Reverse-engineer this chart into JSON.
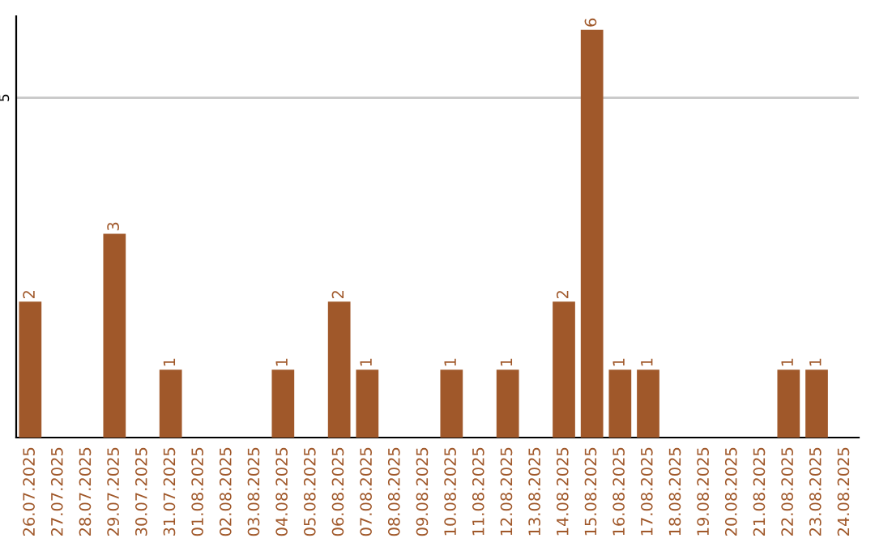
{
  "chart_data": {
    "type": "bar",
    "categories": [
      "26.07.2025",
      "27.07.2025",
      "28.07.2025",
      "29.07.2025",
      "30.07.2025",
      "31.07.2025",
      "01.08.2025",
      "02.08.2025",
      "03.08.2025",
      "04.08.2025",
      "05.08.2025",
      "06.08.2025",
      "07.08.2025",
      "08.08.2025",
      "09.08.2025",
      "10.08.2025",
      "11.08.2025",
      "12.08.2025",
      "13.08.2025",
      "14.08.2025",
      "15.08.2025",
      "16.08.2025",
      "17.08.2025",
      "18.08.2025",
      "19.08.2025",
      "20.08.2025",
      "21.08.2025",
      "22.08.2025",
      "23.08.2025",
      "24.08.2025"
    ],
    "values": [
      2,
      0,
      0,
      3,
      0,
      1,
      0,
      0,
      0,
      1,
      0,
      2,
      1,
      0,
      0,
      1,
      0,
      1,
      0,
      2,
      6,
      1,
      1,
      0,
      0,
      0,
      0,
      1,
      1,
      0
    ],
    "value_labels": [
      "2",
      null,
      null,
      "3",
      null,
      "1",
      null,
      null,
      null,
      "1",
      null,
      "2",
      "1",
      null,
      null,
      "1",
      null,
      "1",
      null,
      "2",
      "6",
      "1",
      "1",
      null,
      null,
      null,
      null,
      "1",
      "1",
      null
    ],
    "color": "#a0582a",
    "ylim": [
      0,
      6.2
    ],
    "yticks": [
      5
    ],
    "grid": "y"
  }
}
